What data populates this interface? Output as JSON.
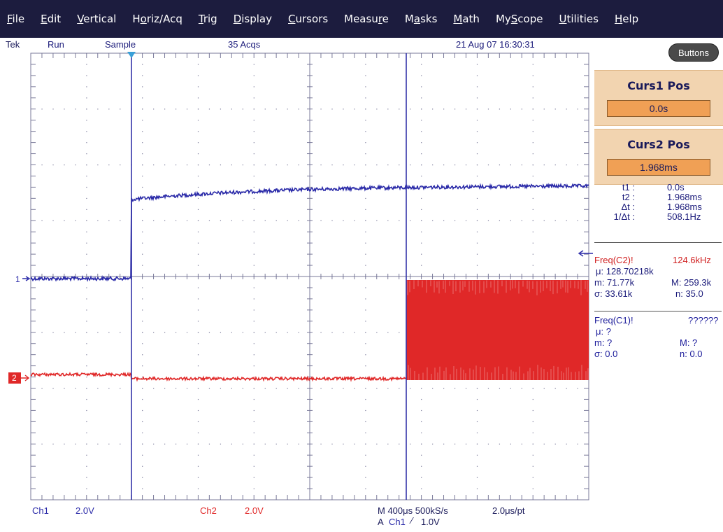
{
  "menu": [
    {
      "label": "File",
      "name": "menu-file"
    },
    {
      "label": "Edit",
      "name": "menu-edit"
    },
    {
      "label": "Vertical",
      "name": "menu-vertical"
    },
    {
      "label": "Horiz/Acq",
      "name": "menu-horiz-acq"
    },
    {
      "label": "Trig",
      "name": "menu-trig"
    },
    {
      "label": "Display",
      "name": "menu-display"
    },
    {
      "label": "Cursors",
      "name": "menu-cursors"
    },
    {
      "label": "Measure",
      "name": "menu-measure"
    },
    {
      "label": "Masks",
      "name": "menu-masks"
    },
    {
      "label": "Math",
      "name": "menu-math"
    },
    {
      "label": "MyScope",
      "name": "menu-myscope"
    },
    {
      "label": "Utilities",
      "name": "menu-utilities"
    },
    {
      "label": "Help",
      "name": "menu-help"
    }
  ],
  "status": {
    "brand": "Tek",
    "run_state": "Run",
    "mode": "Sample",
    "acqs": "35 Acqs",
    "datetime": "21 Aug 07 16:30:31"
  },
  "panel": {
    "buttons_label": "Buttons",
    "curs1": {
      "title": "Curs1 Pos",
      "value": "0.0s"
    },
    "curs2": {
      "title": "Curs2 Pos",
      "value": "1.968ms"
    },
    "readout": [
      {
        "key": "t1 :",
        "value": "0.0s"
      },
      {
        "key": "t2 :",
        "value": "1.968ms"
      },
      {
        "key": "Δt :",
        "value": "1.968ms"
      },
      {
        "key": "1/Δt :",
        "value": "508.1Hz"
      }
    ],
    "freq_c2": {
      "label": "Freq(C2)!",
      "value": "124.6kHz",
      "mean": "μ: 128.70218k",
      "min": "m: 71.77k",
      "max": "M: 259.3k",
      "sigma": "σ: 33.61k",
      "n": "n: 35.0"
    },
    "freq_c1": {
      "label": "Freq(C1)!",
      "value": "??????",
      "mean": "μ: ?",
      "min": "m: ?",
      "max": "M: ?",
      "sigma": "σ: 0.0",
      "n": "n: 0.0"
    }
  },
  "channels": {
    "ch1": {
      "marker": "1",
      "label": "Ch1",
      "scale": "2.0V",
      "color": "#2a2aa8"
    },
    "ch2": {
      "marker": "2",
      "label": "Ch2",
      "scale": "2.0V",
      "color": "#e02828"
    }
  },
  "timebase": {
    "horizontal": "M 400μs 500kS/s",
    "resolution": "2.0μs/pt",
    "trigger_prefix": "A",
    "trigger_source": "Ch1",
    "trigger_level": "1.0V"
  },
  "colors": {
    "menubar_bg": "#1c1c3e",
    "cursor_line": "#3434a8",
    "trigger_marker": "#3aa0d8",
    "grid": "#7a7a9a"
  }
}
